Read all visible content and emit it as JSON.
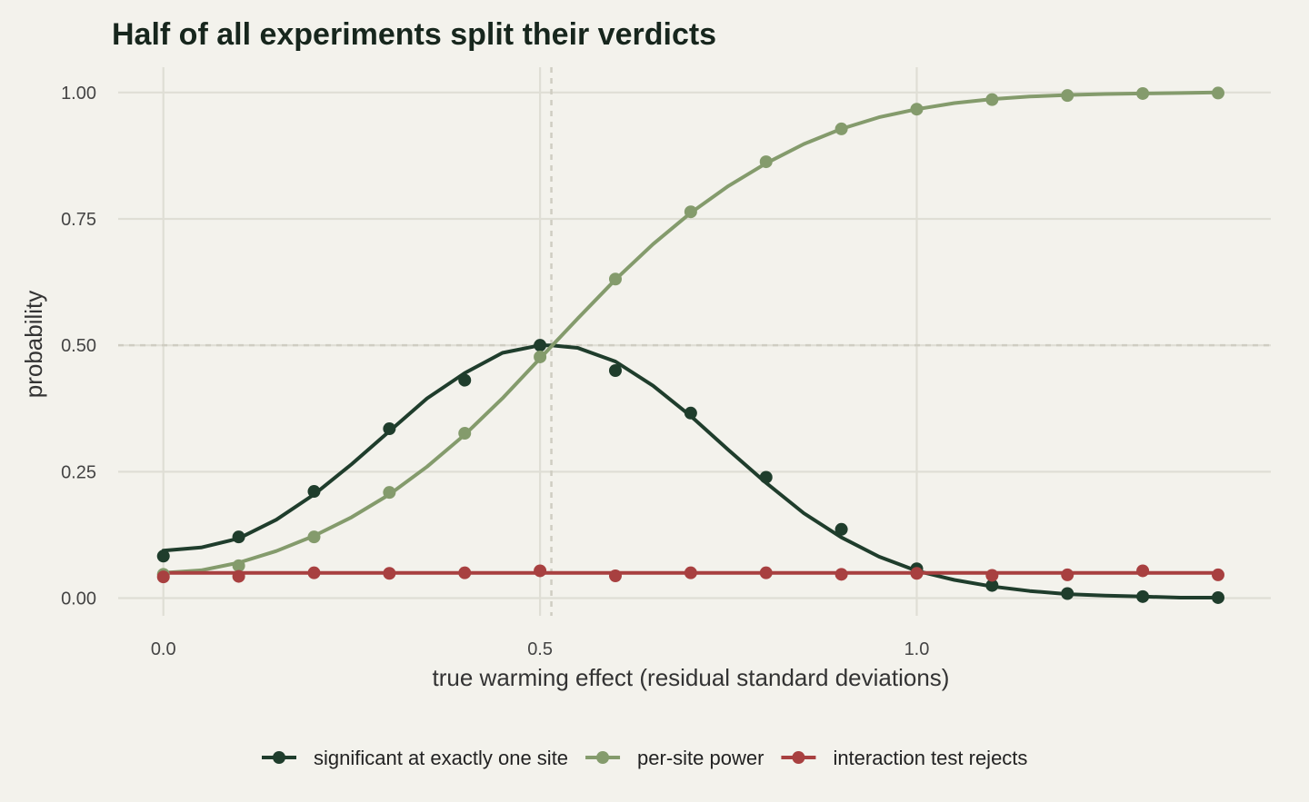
{
  "chart_data": {
    "type": "line",
    "title": "Half of all experiments split their verdicts",
    "xlabel": "true warming effect (residual standard deviations)",
    "ylabel": "probability",
    "xlim": [
      -0.06,
      1.47
    ],
    "ylim": [
      -0.035,
      1.05
    ],
    "x_ticks": [
      0.0,
      0.5,
      1.0
    ],
    "x_tick_labels": [
      "0.0",
      "0.5",
      "1.0"
    ],
    "y_ticks": [
      0.0,
      0.25,
      0.5,
      0.75,
      1.0
    ],
    "y_tick_labels": [
      "0.00",
      "0.25",
      "0.50",
      "0.75",
      "1.00"
    ],
    "grid": true,
    "legend_position": "bottom",
    "reference_lines": {
      "h": 0.5,
      "v": 0.515
    },
    "series": [
      {
        "name": "significant at exactly one site",
        "color": "#1f3d2c",
        "points_x": [
          0.0,
          0.1,
          0.2,
          0.3,
          0.4,
          0.5,
          0.6,
          0.7,
          0.8,
          0.9,
          1.0,
          1.1,
          1.2,
          1.3,
          1.4
        ],
        "points_y": [
          0.083,
          0.121,
          0.211,
          0.335,
          0.431,
          0.5,
          0.45,
          0.366,
          0.239,
          0.136,
          0.058,
          0.025,
          0.009,
          0.003,
          0.001
        ],
        "curve_x": [
          0.0,
          0.05,
          0.1,
          0.15,
          0.2,
          0.25,
          0.3,
          0.35,
          0.4,
          0.45,
          0.5,
          0.515,
          0.55,
          0.6,
          0.65,
          0.7,
          0.75,
          0.8,
          0.85,
          0.9,
          0.95,
          1.0,
          1.05,
          1.1,
          1.15,
          1.2,
          1.25,
          1.3,
          1.35,
          1.4
        ],
        "curve_y": [
          0.094,
          0.1,
          0.118,
          0.155,
          0.205,
          0.265,
          0.33,
          0.395,
          0.445,
          0.485,
          0.5,
          0.5,
          0.495,
          0.468,
          0.42,
          0.36,
          0.293,
          0.228,
          0.168,
          0.12,
          0.082,
          0.054,
          0.036,
          0.023,
          0.014,
          0.008,
          0.005,
          0.003,
          0.001,
          0.001
        ]
      },
      {
        "name": "per-site power",
        "color": "#849b6c",
        "points_x": [
          0.0,
          0.1,
          0.2,
          0.3,
          0.4,
          0.5,
          0.6,
          0.7,
          0.8,
          0.9,
          1.0,
          1.1,
          1.2,
          1.3,
          1.4
        ],
        "points_y": [
          0.047,
          0.064,
          0.121,
          0.209,
          0.326,
          0.477,
          0.631,
          0.764,
          0.863,
          0.928,
          0.967,
          0.986,
          0.994,
          0.998,
          0.999
        ],
        "curve_x": [
          0.0,
          0.05,
          0.1,
          0.15,
          0.2,
          0.25,
          0.3,
          0.35,
          0.4,
          0.45,
          0.5,
          0.55,
          0.6,
          0.65,
          0.7,
          0.75,
          0.8,
          0.85,
          0.9,
          0.95,
          1.0,
          1.05,
          1.1,
          1.15,
          1.2,
          1.25,
          1.3,
          1.35,
          1.4
        ],
        "curve_y": [
          0.05,
          0.055,
          0.07,
          0.093,
          0.123,
          0.16,
          0.205,
          0.26,
          0.323,
          0.395,
          0.474,
          0.553,
          0.63,
          0.7,
          0.762,
          0.815,
          0.86,
          0.898,
          0.928,
          0.951,
          0.967,
          0.979,
          0.987,
          0.992,
          0.995,
          0.997,
          0.998,
          0.999,
          1.0
        ]
      },
      {
        "name": "interaction test rejects",
        "color": "#a84040",
        "points_x": [
          0.0,
          0.1,
          0.2,
          0.3,
          0.4,
          0.5,
          0.6,
          0.7,
          0.8,
          0.9,
          1.0,
          1.1,
          1.2,
          1.3,
          1.4
        ],
        "points_y": [
          0.042,
          0.043,
          0.05,
          0.049,
          0.05,
          0.054,
          0.044,
          0.05,
          0.05,
          0.047,
          0.049,
          0.045,
          0.046,
          0.054,
          0.046
        ],
        "curve_x": [
          0.0,
          1.4
        ],
        "curve_y": [
          0.05,
          0.05
        ]
      }
    ]
  }
}
